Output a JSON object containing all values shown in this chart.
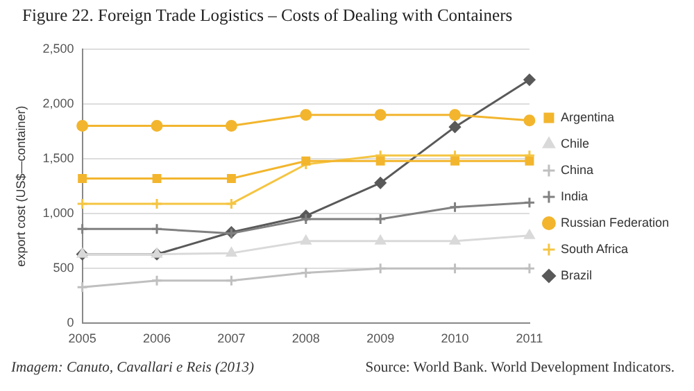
{
  "chart_data": {
    "type": "line",
    "title": "Figure 22. Foreign Trade Logistics – Costs of Dealing with Containers",
    "ylabel": "export cost (US$—container)",
    "categories": [
      "2005",
      "2006",
      "2007",
      "2008",
      "2009",
      "2010",
      "2011"
    ],
    "series": [
      {
        "name": "Argentina",
        "color": "#f2b52d",
        "marker": "square",
        "values": [
          1320,
          1320,
          1320,
          1480,
          1480,
          1480,
          1480
        ]
      },
      {
        "name": "Chile",
        "color": "#d9d9d9",
        "marker": "triangle",
        "values": [
          630,
          630,
          640,
          750,
          750,
          750,
          800
        ]
      },
      {
        "name": "China",
        "color": "#bfbfbf",
        "marker": "cross",
        "values": [
          330,
          390,
          390,
          460,
          500,
          500,
          500
        ]
      },
      {
        "name": "India",
        "color": "#808080",
        "marker": "cross",
        "values": [
          860,
          860,
          820,
          950,
          950,
          1060,
          1100
        ]
      },
      {
        "name": "Russian Federation",
        "color": "#f2b52d",
        "marker": "circle",
        "values": [
          1800,
          1800,
          1800,
          1900,
          1900,
          1900,
          1850
        ]
      },
      {
        "name": "South Africa",
        "color": "#f5c542",
        "marker": "cross",
        "values": [
          1090,
          1090,
          1090,
          1450,
          1530,
          1530,
          1530
        ]
      },
      {
        "name": "Brazil",
        "color": "#595959",
        "marker": "diamond",
        "values": [
          630,
          630,
          830,
          980,
          1280,
          1790,
          2220
        ]
      }
    ],
    "ylim": [
      0,
      2500
    ],
    "yticks": [
      0,
      500,
      {
        "value": 1000,
        "label": "1,000"
      },
      {
        "value": 1500,
        "label": "1,500"
      },
      {
        "value": 2000,
        "label": "2,000"
      },
      {
        "value": 2500,
        "label": "2,500"
      }
    ],
    "grid": "y",
    "legend": "right",
    "annotations": [
      "Imagem: Canuto, Cavallari e Reis (2013)",
      "Source: World Bank. World Development Indicators."
    ]
  }
}
